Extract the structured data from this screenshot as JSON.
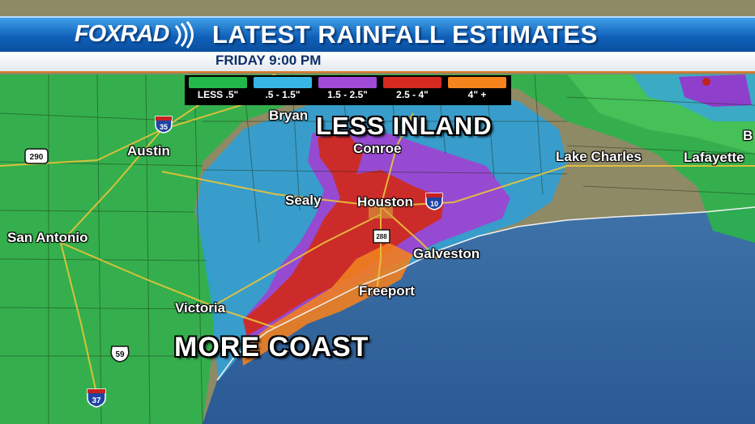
{
  "banner": {
    "logo": "FOXRAD",
    "title": "LATEST RAINFALL ESTIMATES",
    "subtitle": "FRIDAY  9:00 PM"
  },
  "legend": [
    {
      "label": "LESS .5\"",
      "color": "#22b84a"
    },
    {
      "label": ".5 - 1.5\"",
      "color": "#38b6e6"
    },
    {
      "label": "1.5 - 2.5\"",
      "color": "#a04ad8"
    },
    {
      "label": "2.5 - 4\"",
      "color": "#d42a20"
    },
    {
      "label": "4\" +",
      "color": "#f5841c"
    }
  ],
  "annotations": {
    "inland": "LESS INLAND",
    "coast": "MORE COAST"
  },
  "cities": {
    "bryan": "Bryan",
    "austin": "Austin",
    "conroe": "Conroe",
    "sealy": "Sealy",
    "houston": "Houston",
    "san_antonio": "San Antonio",
    "galveston": "Galveston",
    "freeport": "Freeport",
    "victoria": "Victoria",
    "lake_charles": "Lake Charles",
    "lafayette": "Lafayette",
    "edge_b": "B"
  },
  "highways": {
    "i35": "35",
    "us290": "290",
    "i10": "10",
    "sh288": "288",
    "us59": "59",
    "i37": "37"
  }
}
